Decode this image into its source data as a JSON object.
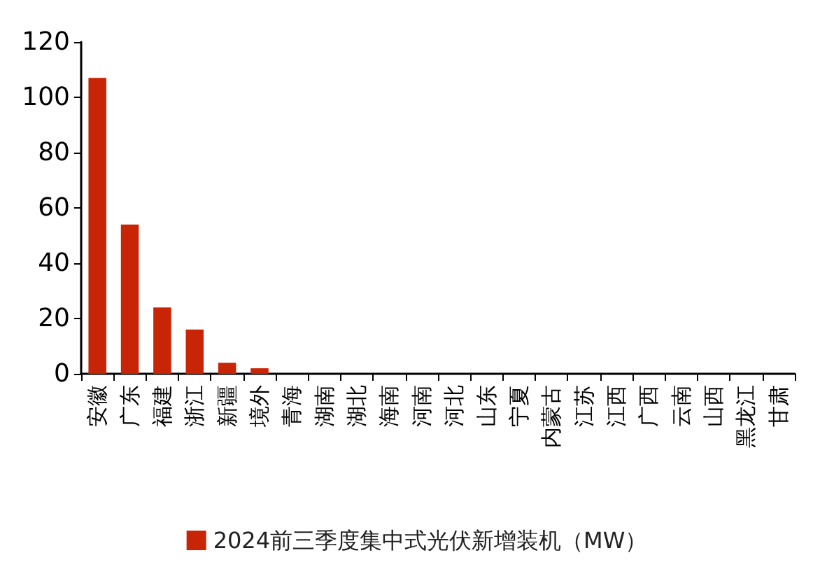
{
  "chart_data": {
    "type": "bar",
    "categories": [
      "安徽",
      "广东",
      "福建",
      "浙江",
      "新疆",
      "境外",
      "青海",
      "湖南",
      "湖北",
      "海南",
      "河南",
      "河北",
      "山东",
      "宁夏",
      "内蒙古",
      "江苏",
      "江西",
      "广西",
      "云南",
      "山西",
      "黑龙江",
      "甘肃"
    ],
    "series": [
      {
        "name": "2024前三季度集中式光伏新增装机（MW）",
        "color": "#c82506",
        "values": [
          107,
          54,
          24,
          16,
          4,
          2,
          0,
          0,
          0,
          0,
          0,
          0,
          0,
          0,
          0,
          0,
          0,
          0,
          0,
          0,
          0,
          0
        ]
      }
    ],
    "ylim": [
      0,
      120
    ],
    "yticks": [
      0,
      20,
      40,
      60,
      80,
      100,
      120
    ],
    "grid": false,
    "legend": "bottom"
  }
}
